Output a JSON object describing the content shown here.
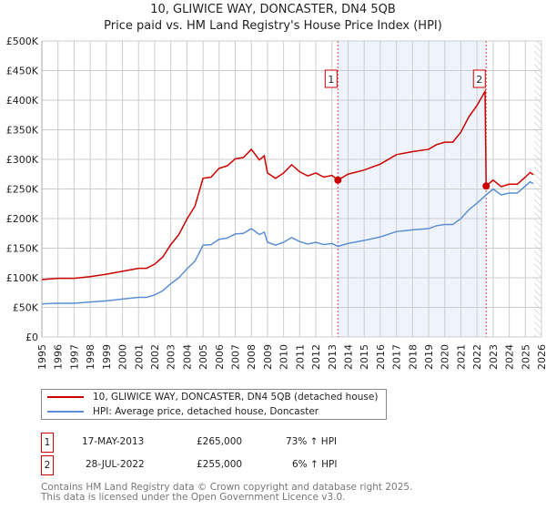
{
  "chart_data": {
    "type": "line",
    "title": "10, GLIWICE WAY, DONCASTER, DN4 5QB",
    "subtitle": "Price paid vs. HM Land Registry's House Price Index (HPI)",
    "xlim": [
      1995,
      2026
    ],
    "ylim": [
      0,
      500000
    ],
    "x_ticks": [
      "1995",
      "1996",
      "1997",
      "1998",
      "1999",
      "2000",
      "2001",
      "2002",
      "2003",
      "2004",
      "2005",
      "2006",
      "2007",
      "2008",
      "2009",
      "2010",
      "2011",
      "2012",
      "2013",
      "2014",
      "2015",
      "2016",
      "2017",
      "2018",
      "2019",
      "2020",
      "2021",
      "2022",
      "2023",
      "2024",
      "2025",
      "2026"
    ],
    "y_ticks": [
      {
        "v": 0,
        "label": "£0"
      },
      {
        "v": 50000,
        "label": "£50K"
      },
      {
        "v": 100000,
        "label": "£100K"
      },
      {
        "v": 150000,
        "label": "£150K"
      },
      {
        "v": 200000,
        "label": "£200K"
      },
      {
        "v": 250000,
        "label": "£250K"
      },
      {
        "v": 300000,
        "label": "£300K"
      },
      {
        "v": 350000,
        "label": "£350K"
      },
      {
        "v": 400000,
        "label": "£400K"
      },
      {
        "v": 450000,
        "label": "£450K"
      },
      {
        "v": 500000,
        "label": "£500K"
      }
    ],
    "grid": true,
    "shaded_range": [
      2013.37,
      2022.57
    ],
    "forecast_hatch_from": 2025.55,
    "colors": {
      "property": "#cc0000",
      "hpi": "#5b8fd4",
      "shade": "#eef3fc"
    },
    "series": [
      {
        "name": "10, GLIWICE WAY, DONCASTER, DN4 5QB (detached house)",
        "x": [
          1995,
          1996,
          1997,
          1998,
          1999,
          2000,
          2001,
          2001.5,
          2002,
          2002.5,
          2003,
          2003.5,
          2004,
          2004.5,
          2005,
          2005.5,
          2006,
          2006.5,
          2007,
          2007.5,
          2008,
          2008.5,
          2008.8,
          2009,
          2009.5,
          2010,
          2010.5,
          2011,
          2011.5,
          2012,
          2012.5,
          2013,
          2013.37,
          2014,
          2015,
          2016,
          2017,
          2018,
          2019,
          2019.5,
          2020,
          2020.5,
          2021,
          2021.5,
          2022,
          2022.5,
          2022.57,
          2023,
          2023.5,
          2024,
          2024.5,
          2025,
          2025.3,
          2025.5
        ],
        "values": [
          97000,
          99000,
          99000,
          102000,
          106000,
          111000,
          116000,
          116000,
          123000,
          135000,
          156000,
          173000,
          199000,
          221000,
          268000,
          270000,
          285000,
          289000,
          301000,
          303000,
          317000,
          299000,
          306000,
          277000,
          268000,
          277000,
          291000,
          279000,
          272000,
          277000,
          270000,
          273000,
          265000,
          275000,
          282000,
          292000,
          308000,
          313000,
          317000,
          325000,
          329000,
          329000,
          346000,
          372000,
          391000,
          415000,
          255000,
          265000,
          254000,
          258000,
          258000,
          270000,
          278000,
          274000
        ]
      },
      {
        "name": "HPI: Average price, detached house, Doncaster",
        "x": [
          1995,
          1996,
          1997,
          1998,
          1999,
          2000,
          2001,
          2001.5,
          2002,
          2002.5,
          2003,
          2003.5,
          2004,
          2004.5,
          2005,
          2005.5,
          2006,
          2006.5,
          2007,
          2007.5,
          2008,
          2008.5,
          2008.8,
          2009,
          2009.5,
          2010,
          2010.5,
          2011,
          2011.5,
          2012,
          2012.5,
          2013,
          2013.37,
          2014,
          2015,
          2016,
          2017,
          2018,
          2019,
          2019.5,
          2020,
          2020.5,
          2021,
          2021.5,
          2022,
          2022.57,
          2023,
          2023.5,
          2024,
          2024.5,
          2025,
          2025.3,
          2025.5
        ],
        "values": [
          56000,
          57000,
          57000,
          59000,
          61000,
          64000,
          67000,
          67000,
          71000,
          78000,
          90000,
          100000,
          115000,
          128000,
          155000,
          156000,
          165000,
          167000,
          174000,
          175000,
          183000,
          173000,
          177000,
          160000,
          155000,
          160000,
          168000,
          161000,
          157000,
          160000,
          156000,
          158000,
          153000,
          158000,
          163000,
          169000,
          178000,
          181000,
          183000,
          188000,
          190000,
          190000,
          200000,
          215000,
          226000,
          240000,
          250000,
          240000,
          243000,
          243000,
          255000,
          262000,
          259000
        ]
      }
    ],
    "sales": [
      {
        "id": "1",
        "x": 2013.37,
        "value": 265000,
        "date": "17-MAY-2013",
        "price": "£265,000",
        "hpi": "73% ↑ HPI"
      },
      {
        "id": "2",
        "x": 2022.57,
        "value": 255000,
        "date": "28-JUL-2022",
        "price": "£255,000",
        "hpi": "6% ↑ HPI"
      }
    ]
  },
  "legend": {
    "property": "10, GLIWICE WAY, DONCASTER, DN4 5QB (detached house)",
    "hpi": "HPI: Average price, detached house, Doncaster"
  },
  "footer": {
    "line1": "Contains HM Land Registry data © Crown copyright and database right 2025.",
    "line2": "This data is licensed under the Open Government Licence v3.0."
  }
}
